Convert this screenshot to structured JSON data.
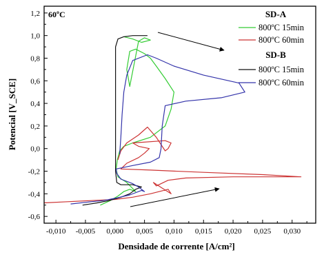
{
  "chart_data": {
    "type": "line",
    "annotation": "60ºC",
    "xlabel": "Densidade de corrente [A/cm²]",
    "ylabel": "Potencial [V_SCE]",
    "xlim": [
      -0.012,
      0.034
    ],
    "ylim": [
      -0.66,
      1.26
    ],
    "xticks": [
      -0.01,
      -0.005,
      0.0,
      0.005,
      0.01,
      0.015,
      0.02,
      0.025,
      0.03
    ],
    "xtick_labels": [
      "-0,010",
      "-0,005",
      "0,000",
      "0,005",
      "0,010",
      "0,015",
      "0,020",
      "0,025",
      "0,030"
    ],
    "yticks": [
      -0.6,
      -0.4,
      -0.2,
      0.0,
      0.2,
      0.4,
      0.6,
      0.8,
      1.0,
      1.2
    ],
    "ytick_labels": [
      "-0,6",
      "-0,4",
      "-0,2",
      "0,0",
      "0,2",
      "0,4",
      "0,6",
      "0,8",
      "1,0",
      "1,2"
    ],
    "legend_position": "top-right",
    "legend_groups": [
      {
        "title": "SD-A",
        "entries": [
          "800ºC 15min",
          "800ºC 60min"
        ]
      },
      {
        "title": "SD-B",
        "entries": [
          "800ºC 15min",
          "800ºC 60min"
        ]
      }
    ],
    "series": [
      {
        "name": "800ºC 15min",
        "group": "SD-A",
        "color": "#33cc33",
        "points": [
          [
            -0.0025,
            -0.5
          ],
          [
            -0.0008,
            -0.46
          ],
          [
            0.0005,
            -0.42
          ],
          [
            0.0015,
            -0.38
          ],
          [
            0.0025,
            -0.36
          ],
          [
            0.0035,
            -0.38
          ],
          [
            0.002,
            -0.3
          ],
          [
            0.0005,
            -0.25
          ],
          [
            0.0002,
            -0.18
          ],
          [
            0.0004,
            -0.1
          ],
          [
            0.0008,
            -0.02
          ],
          [
            0.0015,
            0.02
          ],
          [
            0.003,
            0.05
          ],
          [
            0.006,
            0.1
          ],
          [
            0.0085,
            0.2
          ],
          [
            0.0095,
            0.35
          ],
          [
            0.01,
            0.5
          ],
          [
            0.0085,
            0.62
          ],
          [
            0.007,
            0.73
          ],
          [
            0.006,
            0.8
          ],
          [
            0.005,
            0.84
          ],
          [
            0.0035,
            0.88
          ],
          [
            0.0025,
            0.86
          ],
          [
            0.002,
            0.7
          ],
          [
            0.0025,
            0.55
          ],
          [
            0.004,
            0.95
          ],
          [
            0.005,
            0.98
          ],
          [
            0.006,
            0.96
          ],
          [
            0.0045,
            0.94
          ],
          [
            0.003,
            0.97
          ],
          [
            0.0015,
            0.99
          ]
        ]
      },
      {
        "name": "800ºC 60min",
        "group": "SD-A",
        "color": "#cc3333",
        "points": [
          [
            -0.012,
            -0.48
          ],
          [
            -0.008,
            -0.47
          ],
          [
            -0.004,
            -0.46
          ],
          [
            0.0,
            -0.45
          ],
          [
            0.003,
            -0.43
          ],
          [
            0.006,
            -0.4
          ],
          [
            0.009,
            -0.36
          ],
          [
            0.0095,
            -0.4
          ],
          [
            0.008,
            -0.35
          ],
          [
            0.0065,
            -0.3
          ],
          [
            0.007,
            -0.33
          ],
          [
            0.009,
            -0.28
          ],
          [
            0.012,
            -0.26
          ],
          [
            0.02,
            -0.25
          ],
          [
            0.0315,
            -0.25
          ],
          [
            0.025,
            -0.23
          ],
          [
            0.015,
            -0.21
          ],
          [
            0.006,
            -0.19
          ],
          [
            0.001,
            -0.18
          ],
          [
            0.002,
            -0.13
          ],
          [
            0.004,
            -0.08
          ],
          [
            0.005,
            -0.04
          ],
          [
            0.0058,
            0.0
          ],
          [
            0.004,
            0.02
          ],
          [
            0.003,
            0.05
          ],
          [
            0.0085,
            0.07
          ],
          [
            0.0095,
            0.05
          ],
          [
            0.009,
            0.0
          ],
          [
            0.0085,
            -0.02
          ],
          [
            0.007,
            0.1
          ],
          [
            0.006,
            0.16
          ],
          [
            0.0055,
            0.19
          ],
          [
            0.004,
            0.12
          ],
          [
            0.002,
            0.05
          ],
          [
            0.001,
            -0.02
          ],
          [
            0.0005,
            -0.1
          ]
        ]
      },
      {
        "name": "800ºC 15min",
        "group": "SD-B",
        "color": "#111111",
        "points": [
          [
            -0.0055,
            -0.5
          ],
          [
            -0.003,
            -0.48
          ],
          [
            -0.001,
            -0.46
          ],
          [
            0.001,
            -0.43
          ],
          [
            0.0025,
            -0.4
          ],
          [
            0.0035,
            -0.36
          ],
          [
            0.0045,
            -0.34
          ],
          [
            0.003,
            -0.32
          ],
          [
            0.001,
            -0.32
          ],
          [
            0.0003,
            -0.3
          ],
          [
            0.0001,
            -0.2
          ],
          [
            0.0001,
            0.0
          ],
          [
            0.0001,
            0.3
          ],
          [
            0.0001,
            0.6
          ],
          [
            0.0001,
            0.9
          ],
          [
            0.0005,
            0.97
          ],
          [
            0.0015,
            0.99
          ],
          [
            0.003,
            1.0
          ],
          [
            0.0055,
            1.0
          ]
        ]
      },
      {
        "name": "800ºC 60min",
        "group": "SD-B",
        "color": "#3333aa",
        "points": [
          [
            -0.0075,
            -0.49
          ],
          [
            -0.004,
            -0.47
          ],
          [
            -0.002,
            -0.46
          ],
          [
            0.0,
            -0.44
          ],
          [
            0.0025,
            -0.41
          ],
          [
            0.0045,
            -0.37
          ],
          [
            0.005,
            -0.38
          ],
          [
            0.004,
            -0.34
          ],
          [
            0.003,
            -0.31
          ],
          [
            0.001,
            -0.27
          ],
          [
            0.0003,
            -0.22
          ],
          [
            0.0002,
            -0.18
          ],
          [
            0.003,
            -0.15
          ],
          [
            0.006,
            -0.12
          ],
          [
            0.0075,
            -0.08
          ],
          [
            0.0078,
            0.0
          ],
          [
            0.008,
            0.2
          ],
          [
            0.0085,
            0.38
          ],
          [
            0.012,
            0.42
          ],
          [
            0.018,
            0.45
          ],
          [
            0.022,
            0.5
          ],
          [
            0.021,
            0.58
          ],
          [
            0.015,
            0.65
          ],
          [
            0.01,
            0.73
          ],
          [
            0.007,
            0.8
          ],
          [
            0.0055,
            0.83
          ],
          [
            0.003,
            0.78
          ],
          [
            0.002,
            0.65
          ],
          [
            0.0015,
            0.5
          ],
          [
            0.0012,
            0.3
          ],
          [
            0.001,
            0.1
          ],
          [
            0.0008,
            -0.05
          ]
        ]
      }
    ]
  }
}
